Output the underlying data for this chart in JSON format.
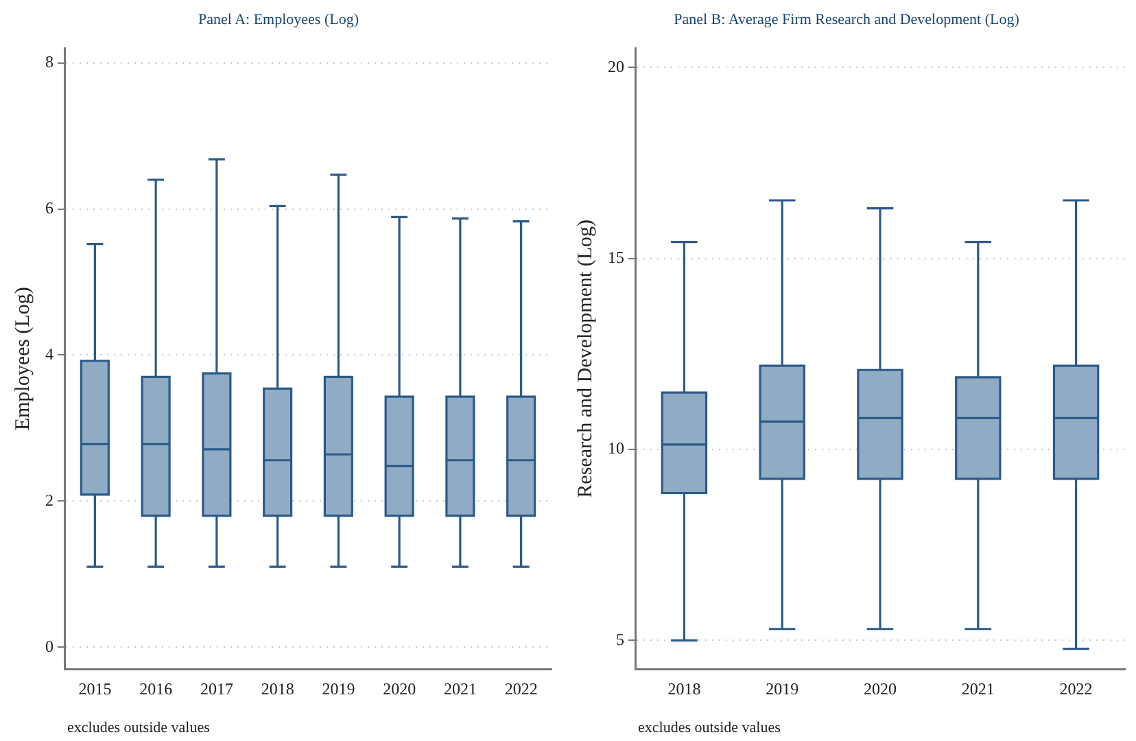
{
  "chart_data": [
    {
      "type": "box",
      "title": "Panel A: Employees (Log)",
      "ylabel": "Employees (Log)",
      "categories": [
        "2015",
        "2016",
        "2017",
        "2018",
        "2019",
        "2020",
        "2021",
        "2022"
      ],
      "color": "#90acc4",
      "grid": "y",
      "ylim": [
        -0.3,
        8.2
      ],
      "yticks": [
        0,
        2,
        4,
        6,
        8
      ],
      "annotations": [
        "excludes outside values"
      ],
      "boxes": [
        {
          "low": 1.1,
          "q1": 2.09,
          "median": 2.78,
          "q3": 3.92,
          "high": 5.52
        },
        {
          "low": 1.1,
          "q1": 1.8,
          "median": 2.78,
          "q3": 3.7,
          "high": 6.4
        },
        {
          "low": 1.1,
          "q1": 1.8,
          "median": 2.71,
          "q3": 3.75,
          "high": 6.68
        },
        {
          "low": 1.1,
          "q1": 1.8,
          "median": 2.56,
          "q3": 3.54,
          "high": 6.04
        },
        {
          "low": 1.1,
          "q1": 1.8,
          "median": 2.64,
          "q3": 3.7,
          "high": 6.47
        },
        {
          "low": 1.1,
          "q1": 1.8,
          "median": 2.48,
          "q3": 3.43,
          "high": 5.89
        },
        {
          "low": 1.1,
          "q1": 1.8,
          "median": 2.56,
          "q3": 3.43,
          "high": 5.87
        },
        {
          "low": 1.1,
          "q1": 1.8,
          "median": 2.56,
          "q3": 3.43,
          "high": 5.83
        }
      ]
    },
    {
      "type": "box",
      "title": "Panel B: Average Firm Research and Development (Log)",
      "ylabel": "Research and Development (Log)",
      "categories": [
        "2018",
        "2019",
        "2020",
        "2021",
        "2022"
      ],
      "color": "#90acc4",
      "grid": "y",
      "ylim": [
        4.25,
        20.5
      ],
      "yticks": [
        5,
        10,
        15,
        20
      ],
      "annotations": [
        "excludes outside values"
      ],
      "boxes": [
        {
          "low": 5.0,
          "q1": 8.86,
          "median": 10.13,
          "q3": 11.49,
          "high": 15.43
        },
        {
          "low": 5.3,
          "q1": 9.23,
          "median": 10.73,
          "q3": 12.19,
          "high": 16.52
        },
        {
          "low": 5.3,
          "q1": 9.23,
          "median": 10.82,
          "q3": 12.08,
          "high": 16.31
        },
        {
          "low": 5.3,
          "q1": 9.23,
          "median": 10.82,
          "q3": 11.89,
          "high": 15.43
        },
        {
          "low": 4.78,
          "q1": 9.23,
          "median": 10.82,
          "q3": 12.19,
          "high": 16.52
        }
      ]
    }
  ]
}
